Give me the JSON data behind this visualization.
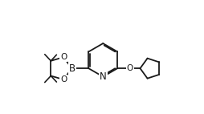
{
  "bg_color": "#ffffff",
  "line_color": "#1a1a1a",
  "lw": 1.3,
  "fs": 7.5,
  "figsize": [
    2.54,
    1.42
  ],
  "dpi": 100,
  "xlim": [
    0.0,
    10.0
  ],
  "ylim": [
    0.5,
    5.5
  ]
}
